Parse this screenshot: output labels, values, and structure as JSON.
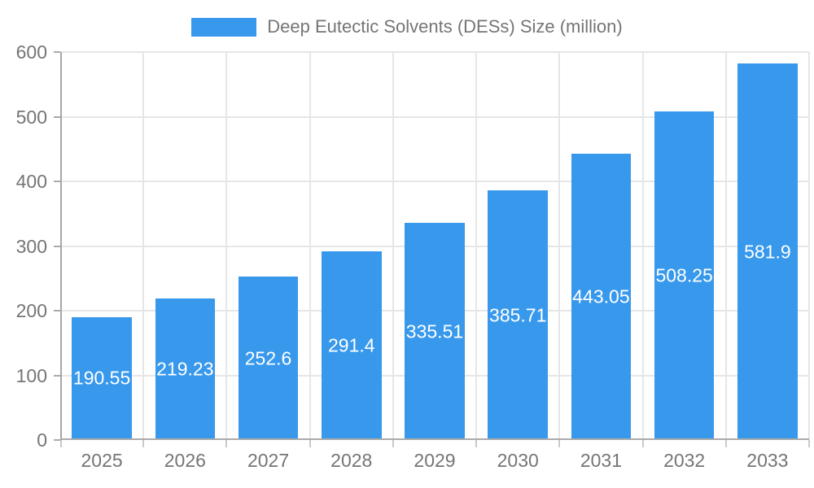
{
  "chart_data": {
    "type": "bar",
    "title": "",
    "legend": {
      "label": "Deep Eutectic Solvents (DESs) Size (million)",
      "position": "top"
    },
    "categories": [
      "2025",
      "2026",
      "2027",
      "2028",
      "2029",
      "2030",
      "2031",
      "2032",
      "2033"
    ],
    "values": [
      190.55,
      219.23,
      252.6,
      291.4,
      335.51,
      385.71,
      443.05,
      508.25,
      581.9
    ],
    "value_labels": [
      "190.55",
      "219.23",
      "252.6",
      "291.4",
      "335.51",
      "385.71",
      "443.05",
      "508.25",
      "581.9"
    ],
    "xlabel": "",
    "ylabel": "",
    "ylim": [
      0,
      600
    ],
    "yticks": [
      0,
      100,
      200,
      300,
      400,
      500,
      600
    ],
    "grid": "both",
    "legend_position": "top-center",
    "colors": {
      "bar": "#3899EC",
      "bar_label_text": "#FFFFFF",
      "axis_text": "#757575",
      "grid_line": "#E6E6E6",
      "axis_line": "#ABABAB",
      "background": "#FFFFFF"
    }
  }
}
